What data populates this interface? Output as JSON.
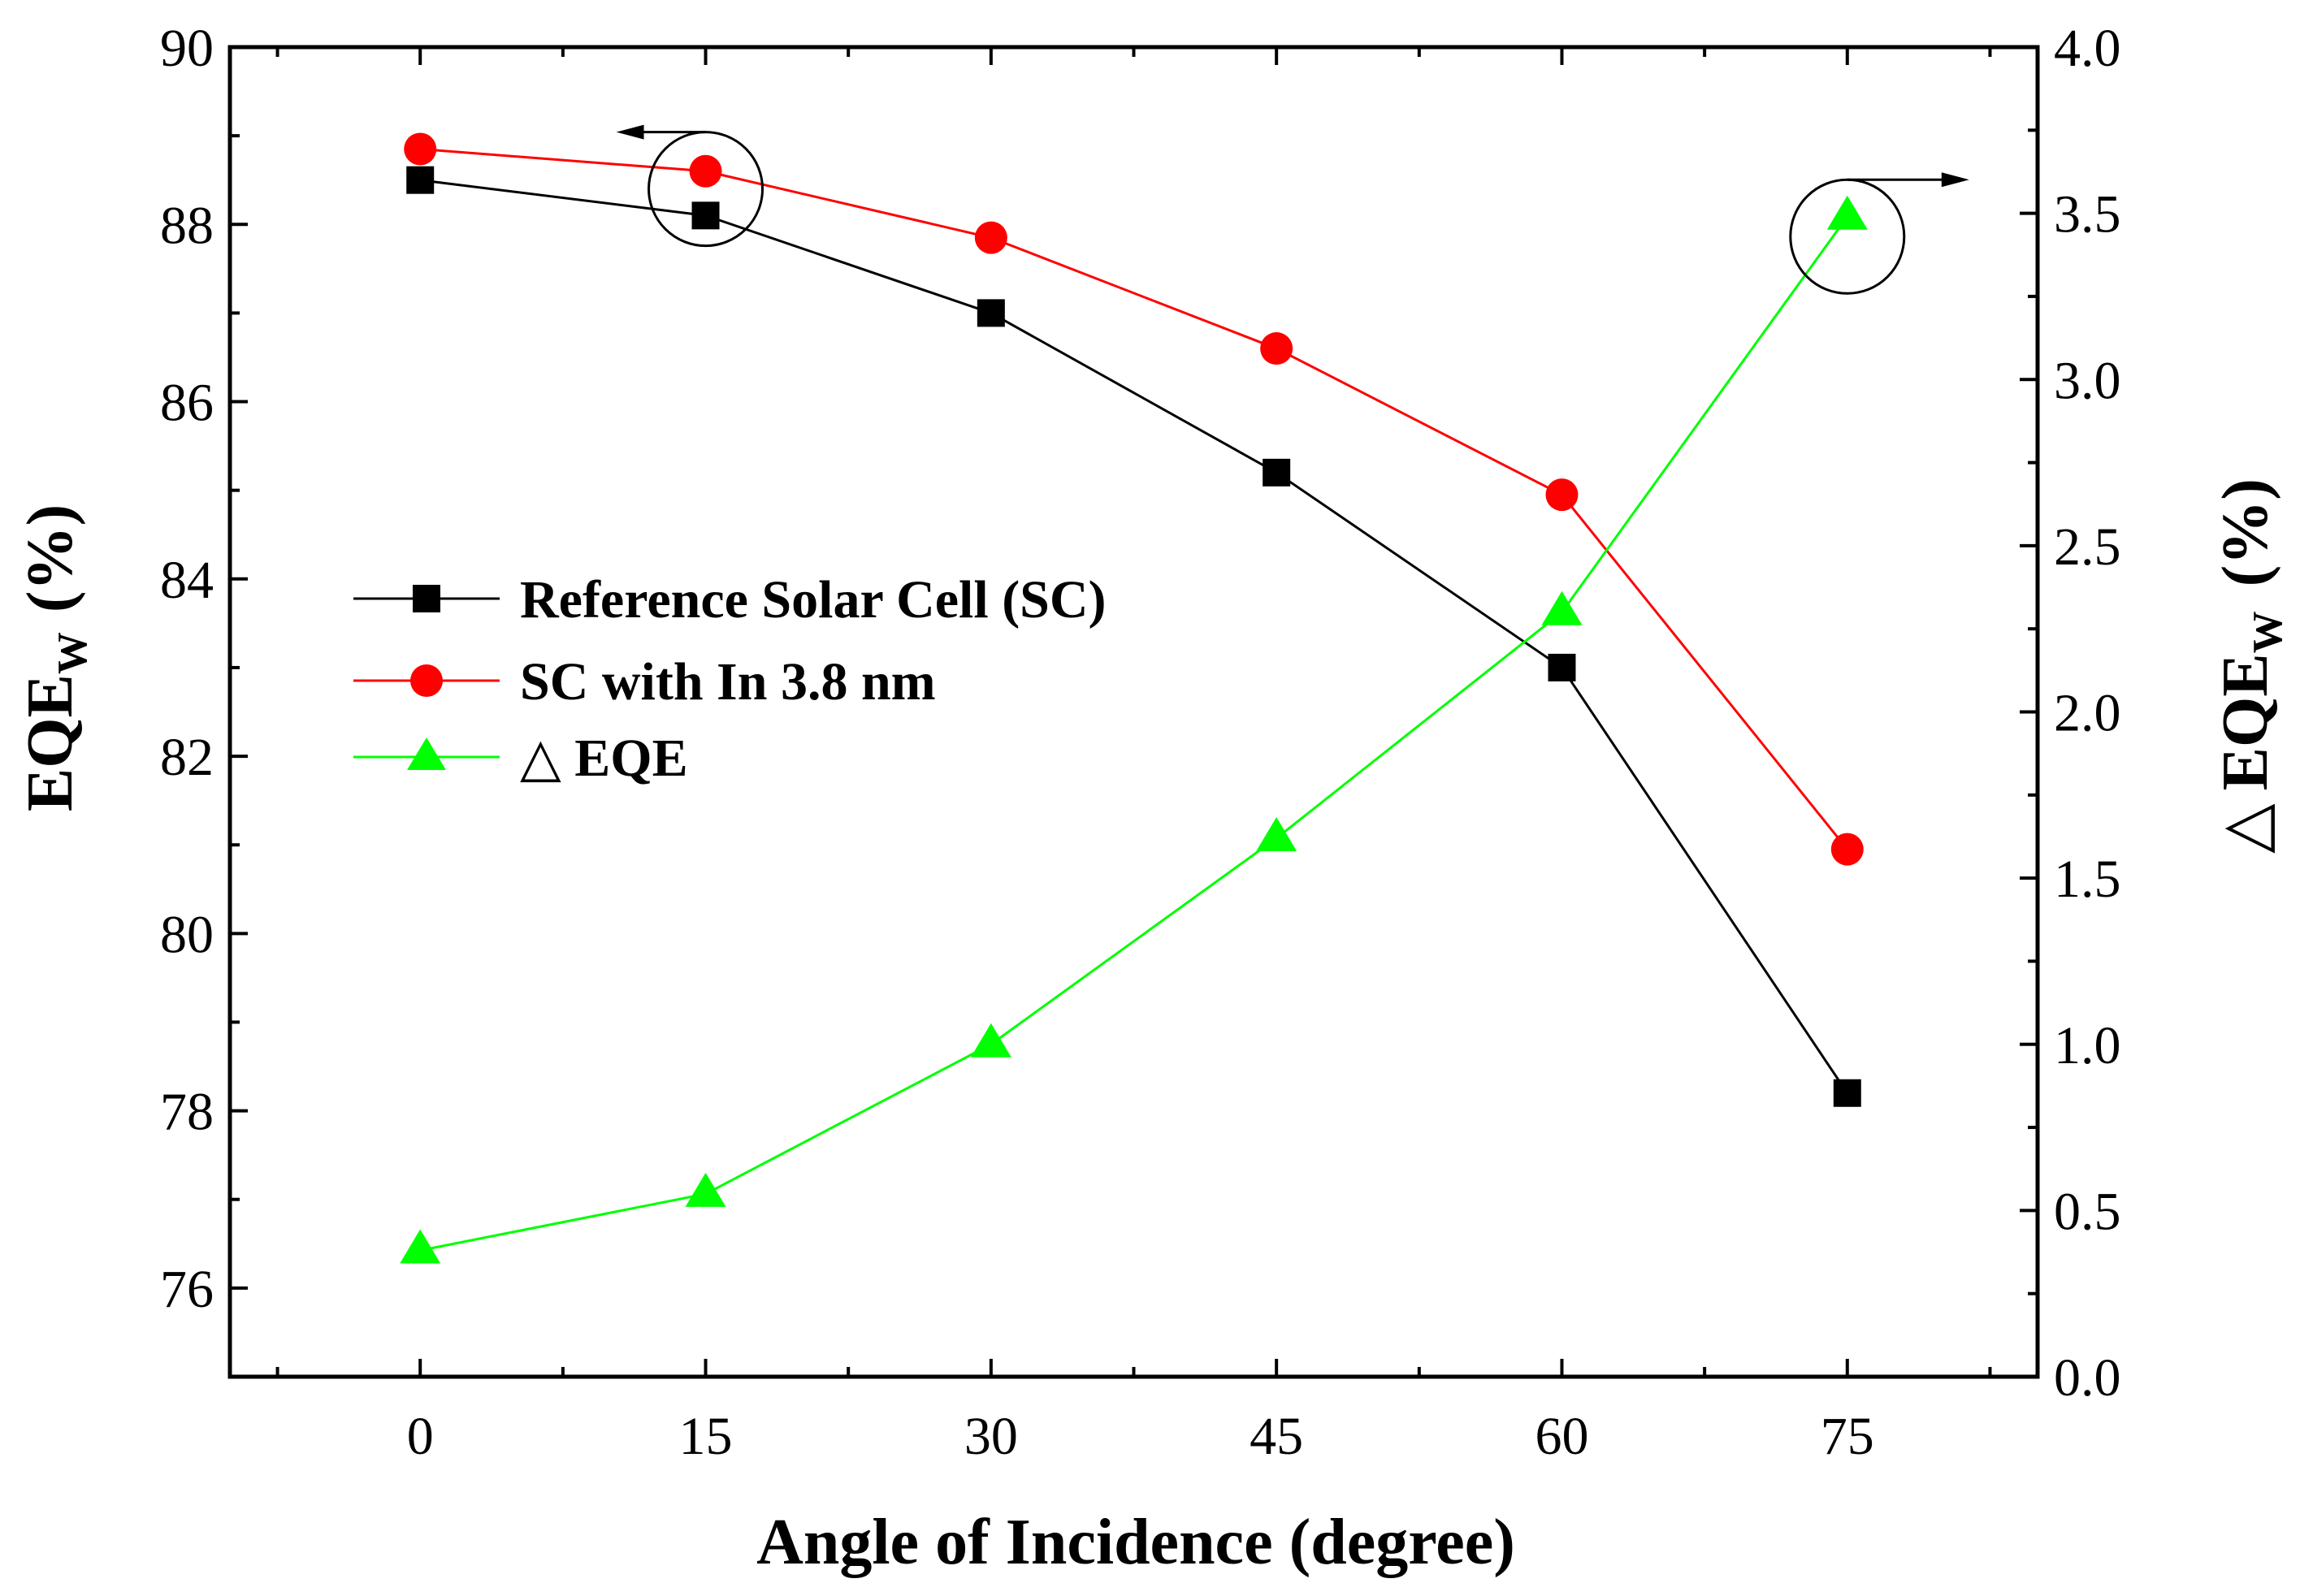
{
  "chart_data": {
    "type": "line",
    "xlabel": "Angle of Incidence (degree)",
    "ylabel_left": {
      "main": "EQE",
      "sub": "W",
      "unit": "(%)"
    },
    "ylabel_right": {
      "prefix": "△",
      "main": "EQE",
      "sub": "W",
      "unit": "(%)"
    },
    "x_ticks": [
      "0",
      "15",
      "30",
      "45",
      "60",
      "75"
    ],
    "y_left_ticks": [
      "76",
      "78",
      "80",
      "82",
      "84",
      "86",
      "88",
      "90"
    ],
    "y_right_ticks": [
      "0.0",
      "0.5",
      "1.0",
      "1.5",
      "2.0",
      "2.5",
      "3.0",
      "3.5",
      "4.0"
    ],
    "xlim": [
      -10,
      85
    ],
    "ylim_left": [
      75,
      90
    ],
    "ylim_right": [
      0,
      4
    ],
    "x": [
      0,
      15,
      30,
      45,
      60,
      75
    ],
    "series": [
      {
        "name": "Reference Solar Cell (SC)",
        "axis": "left",
        "color": "#000000",
        "marker": "square",
        "values": [
          88.5,
          88.1,
          87.0,
          85.2,
          83.0,
          78.2
        ]
      },
      {
        "name": "SC with In 3.8 nm",
        "axis": "left",
        "color": "#ff0000",
        "marker": "circle",
        "values": [
          88.85,
          88.6,
          87.85,
          86.6,
          84.95,
          80.95
        ]
      },
      {
        "name": "△ EQE",
        "axis": "right",
        "color": "#00ff00",
        "marker": "triangle",
        "values": [
          0.38,
          0.55,
          1.0,
          1.62,
          2.3,
          3.49
        ]
      }
    ],
    "annotations": [
      {
        "type": "circle-arrow",
        "target_series": "Reference Solar Cell (SC)",
        "x": 15,
        "y": 88.4,
        "arrow_direction": "left",
        "meaning": "left axis"
      },
      {
        "type": "circle-arrow",
        "target_series": "△ EQE",
        "x": 75,
        "y": 3.43,
        "arrow_direction": "right",
        "meaning": "right axis"
      }
    ],
    "legend_position": "center-left",
    "grid": false
  }
}
